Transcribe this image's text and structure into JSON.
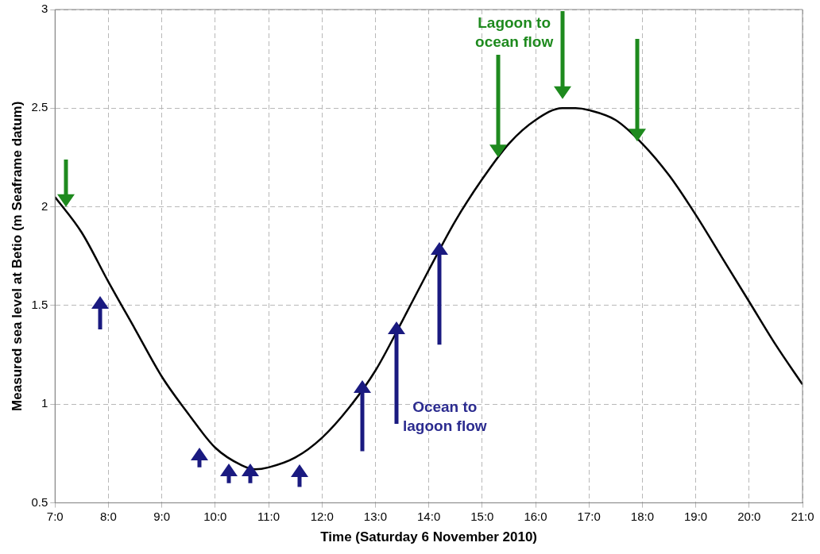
{
  "chart_data": {
    "type": "line",
    "xlabel": "Time (Saturday 6 November 2010)",
    "ylabel": "Measured sea level at Betio (m Seaframe datum)",
    "x": [
      "2010-11-06T07:00",
      "2010-11-06T07:30",
      "2010-11-06T08:00",
      "2010-11-06T08:30",
      "2010-11-06T09:00",
      "2010-11-06T09:30",
      "2010-11-06T10:00",
      "2010-11-06T10:30",
      "2010-11-06T10:45",
      "2010-11-06T11:00",
      "2010-11-06T11:30",
      "2010-11-06T12:00",
      "2010-11-06T12:30",
      "2010-11-06T13:00",
      "2010-11-06T13:30",
      "2010-11-06T14:00",
      "2010-11-06T14:30",
      "2010-11-06T15:00",
      "2010-11-06T15:30",
      "2010-11-06T16:00",
      "2010-11-06T16:30",
      "2010-11-06T16:45",
      "2010-11-06T17:00",
      "2010-11-06T17:30",
      "2010-11-06T18:00",
      "2010-11-06T18:30",
      "2010-11-06T19:00",
      "2010-11-06T19:30",
      "2010-11-06T20:00",
      "2010-11-06T20:30",
      "2010-11-06T21:00"
    ],
    "series": [
      {
        "color": "#000000",
        "values": [
          2.05,
          1.87,
          1.62,
          1.38,
          1.14,
          0.95,
          0.78,
          0.69,
          0.67,
          0.68,
          0.73,
          0.83,
          0.98,
          1.17,
          1.42,
          1.68,
          1.93,
          2.14,
          2.32,
          2.44,
          2.5,
          2.5,
          2.49,
          2.44,
          2.32,
          2.16,
          1.96,
          1.74,
          1.52,
          1.3,
          1.1
        ]
      }
    ],
    "xlim": [
      "2010-11-06T07:00",
      "2010-11-06T21:00"
    ],
    "xticks": [
      {
        "value": "2010-11-06T07:00",
        "label": "7:0"
      },
      {
        "value": "2010-11-06T08:00",
        "label": "8:0"
      },
      {
        "value": "2010-11-06T09:00",
        "label": "9:0"
      },
      {
        "value": "2010-11-06T10:00",
        "label": "10:0"
      },
      {
        "value": "2010-11-06T11:00",
        "label": "11:0"
      },
      {
        "value": "2010-11-06T12:00",
        "label": "12:0"
      },
      {
        "value": "2010-11-06T13:00",
        "label": "13:0"
      },
      {
        "value": "2010-11-06T14:00",
        "label": "14:0"
      },
      {
        "value": "2010-11-06T15:00",
        "label": "15:0"
      },
      {
        "value": "2010-11-06T16:00",
        "label": "16:0"
      },
      {
        "value": "2010-11-06T17:00",
        "label": "17:0"
      },
      {
        "value": "2010-11-06T18:00",
        "label": "18:0"
      },
      {
        "value": "2010-11-06T19:00",
        "label": "19:0"
      },
      {
        "value": "2010-11-06T20:00",
        "label": "20:0"
      },
      {
        "value": "2010-11-06T21:00",
        "label": "21:0"
      }
    ],
    "ylim": [
      0.5,
      3
    ],
    "yticks": [
      0.5,
      1,
      1.5,
      2,
      2.5,
      3
    ],
    "annotations": [
      "Lagoon to ocean flow",
      "Ocean to lagoon flow"
    ],
    "grid": true,
    "legend": false,
    "marker": "none",
    "line_style": "solid"
  }
}
